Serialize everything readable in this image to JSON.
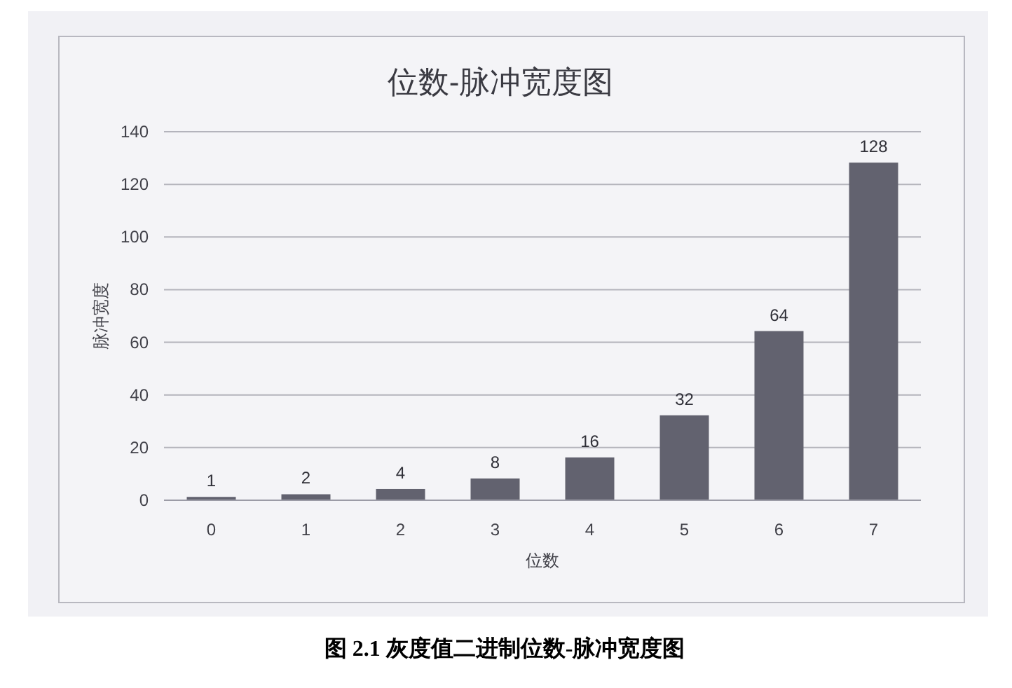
{
  "chart_data": {
    "type": "bar",
    "title": "位数-脉冲宽度图",
    "xlabel": "位数",
    "ylabel": "脉冲宽度",
    "annotations": [
      "图 2.1 灰度值二进制位数-脉冲宽度图"
    ],
    "categories": [
      "0",
      "1",
      "2",
      "3",
      "4",
      "5",
      "6",
      "7"
    ],
    "values": [
      1,
      2,
      4,
      8,
      16,
      32,
      64,
      128
    ],
    "color": "#62626f",
    "ylim": [
      0,
      140
    ],
    "yticks": [
      0,
      20,
      40,
      60,
      80,
      100,
      120,
      140
    ],
    "grid": "y",
    "data_labels": true
  }
}
